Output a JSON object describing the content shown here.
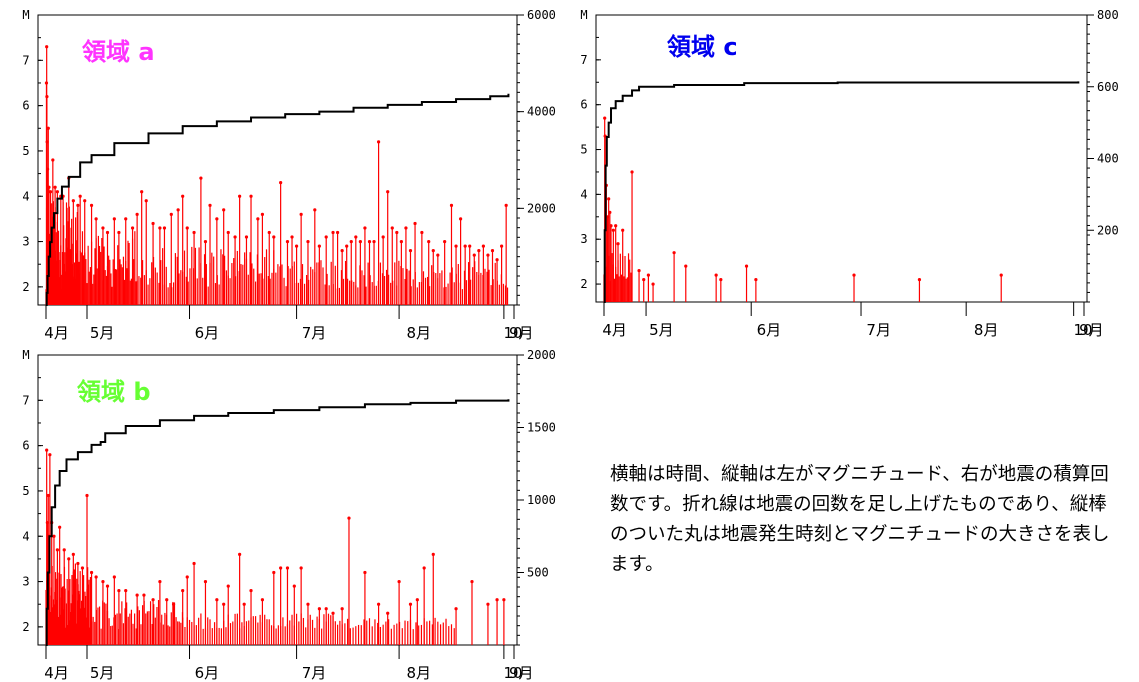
{
  "caption": "横軸は時間、縦軸は左がマグニチュード、右が地震の積算回数です。折れ線は地震の回数を足し上げたものであり、縦棒のついた丸は地震発生時刻とマグニチュードの大きさを表します。",
  "colors": {
    "stems": "#ff0000",
    "cumulative": "#000000",
    "region_a": "#ff33ff",
    "region_b": "#66ff33",
    "region_c": "#0000ee"
  },
  "chart_data": [
    {
      "type": "bar",
      "title": "領域 a",
      "left_axis_label": "M",
      "ylim_left": [
        1.6,
        8.0
      ],
      "ylim_right": [
        0,
        6000
      ],
      "left_ticks": [
        "2",
        "3",
        "4",
        "5",
        "6",
        "7"
      ],
      "right_ticks": [
        "2000",
        "4000",
        "6000"
      ],
      "x_tick_labels": [
        "4月",
        "5月",
        "6月",
        "7月",
        "8月",
        "9月",
        "10"
      ],
      "stems": [
        [
          0.2,
          6.5
        ],
        [
          0.3,
          7.3
        ],
        [
          0.4,
          6.2
        ],
        [
          0.5,
          5.2
        ],
        [
          0.7,
          4.6
        ],
        [
          1.0,
          5.5
        ],
        [
          1.3,
          4.2
        ],
        [
          2.0,
          4.1
        ],
        [
          3.0,
          4.8
        ],
        [
          4.0,
          4.2
        ],
        [
          5.0,
          4.1
        ],
        [
          6.5,
          4.0
        ],
        [
          7.5,
          4.0
        ],
        [
          10.0,
          4.4
        ],
        [
          12.0,
          3.9
        ],
        [
          14.0,
          3.8
        ],
        [
          15.0,
          4.0
        ],
        [
          17.0,
          3.9
        ],
        [
          20.0,
          3.8
        ],
        [
          22.0,
          3.5
        ],
        [
          25.0,
          3.3
        ],
        [
          27.0,
          3.2
        ],
        [
          30.0,
          3.5
        ],
        [
          32.0,
          3.2
        ],
        [
          35.0,
          3.5
        ],
        [
          38.0,
          3.3
        ],
        [
          40.0,
          3.6
        ],
        [
          42.0,
          4.1
        ],
        [
          44.0,
          3.9
        ],
        [
          47.0,
          3.4
        ],
        [
          50.0,
          3.3
        ],
        [
          52.0,
          3.3
        ],
        [
          55.0,
          3.6
        ],
        [
          58.0,
          3.7
        ],
        [
          60.0,
          4.0
        ],
        [
          62.0,
          3.3
        ],
        [
          65.0,
          3.2
        ],
        [
          68.0,
          4.4
        ],
        [
          70.0,
          3.0
        ],
        [
          72.0,
          3.8
        ],
        [
          75.0,
          3.5
        ],
        [
          78.0,
          3.7
        ],
        [
          80.0,
          3.2
        ],
        [
          83.0,
          3.1
        ],
        [
          85.0,
          4.0
        ],
        [
          88.0,
          3.1
        ],
        [
          90.0,
          4.0
        ],
        [
          93.0,
          3.5
        ],
        [
          95.0,
          3.6
        ],
        [
          98.0,
          3.2
        ],
        [
          100.0,
          3.1
        ],
        [
          103.0,
          4.3
        ],
        [
          106.0,
          3.0
        ],
        [
          108.0,
          3.1
        ],
        [
          110.0,
          2.9
        ],
        [
          112.0,
          3.6
        ],
        [
          115.0,
          3.0
        ],
        [
          118.0,
          3.7
        ],
        [
          120.0,
          2.9
        ],
        [
          123.0,
          3.1
        ],
        [
          126.0,
          3.2
        ],
        [
          128.0,
          3.2
        ],
        [
          130.0,
          2.8
        ],
        [
          132.0,
          2.9
        ],
        [
          134.0,
          3.0
        ],
        [
          136.0,
          3.1
        ],
        [
          138.0,
          3.0
        ],
        [
          140.0,
          3.3
        ],
        [
          142.0,
          3.0
        ],
        [
          144.0,
          3.0
        ],
        [
          146.0,
          5.2
        ],
        [
          148.0,
          3.1
        ],
        [
          150.0,
          4.1
        ],
        [
          152.0,
          3.3
        ],
        [
          154.0,
          3.2
        ],
        [
          156.0,
          3.0
        ],
        [
          158.0,
          3.3
        ],
        [
          160.0,
          2.8
        ],
        [
          162.0,
          3.4
        ],
        [
          165.0,
          3.2
        ],
        [
          168.0,
          3.0
        ],
        [
          170.0,
          2.8
        ],
        [
          172.0,
          2.7
        ],
        [
          175.0,
          3.0
        ],
        [
          178.0,
          3.8
        ],
        [
          180.0,
          2.9
        ],
        [
          182.0,
          3.5
        ],
        [
          184.0,
          2.9
        ],
        [
          186.0,
          2.9
        ],
        [
          188.0,
          2.7
        ],
        [
          190.0,
          2.8
        ],
        [
          192.0,
          2.9
        ],
        [
          194.0,
          2.7
        ],
        [
          196.0,
          2.8
        ],
        [
          198.0,
          2.6
        ],
        [
          200.0,
          2.9
        ],
        [
          202.0,
          3.8
        ]
      ],
      "bulk_stems": [
        {
          "from": 0.0,
          "to": 15.0,
          "step": 0.25,
          "max": 3.9
        },
        {
          "from": 15.0,
          "to": 40.0,
          "step": 0.5,
          "max": 3.3
        },
        {
          "from": 40.0,
          "to": 100.0,
          "step": 0.8,
          "max": 2.9
        },
        {
          "from": 100.0,
          "to": 203.0,
          "step": 0.9,
          "max": 2.6
        }
      ],
      "cumulative": [
        [
          0,
          0
        ],
        [
          0.3,
          250
        ],
        [
          0.7,
          600
        ],
        [
          1.2,
          1000
        ],
        [
          1.8,
          1300
        ],
        [
          2.5,
          1600
        ],
        [
          3.5,
          1900
        ],
        [
          5.0,
          2200
        ],
        [
          7.0,
          2450
        ],
        [
          10.0,
          2650
        ],
        [
          15.0,
          2950
        ],
        [
          20.0,
          3100
        ],
        [
          30.0,
          3350
        ],
        [
          45.0,
          3550
        ],
        [
          60.0,
          3700
        ],
        [
          75.0,
          3800
        ],
        [
          90.0,
          3880
        ],
        [
          105.0,
          3950
        ],
        [
          120.0,
          4000
        ],
        [
          135.0,
          4080
        ],
        [
          150.0,
          4140
        ],
        [
          165.0,
          4200
        ],
        [
          180.0,
          4260
        ],
        [
          195.0,
          4320
        ],
        [
          203.0,
          4370
        ]
      ]
    },
    {
      "type": "bar",
      "title": "領域 c",
      "left_axis_label": "M",
      "ylim_left": [
        1.6,
        8.0
      ],
      "ylim_right": [
        0,
        800
      ],
      "left_ticks": [
        "2",
        "3",
        "4",
        "5",
        "6",
        "7"
      ],
      "right_ticks": [
        "200",
        "400",
        "600",
        "800"
      ],
      "x_tick_labels": [
        "4月",
        "5月",
        "6月",
        "7月",
        "8月",
        "9月",
        "10"
      ],
      "stems": [
        [
          0.3,
          5.7
        ],
        [
          0.5,
          5.3
        ],
        [
          1.0,
          4.2
        ],
        [
          1.5,
          3.5
        ],
        [
          2.0,
          3.9
        ],
        [
          2.5,
          3.6
        ],
        [
          3.0,
          3.3
        ],
        [
          4.0,
          3.2
        ],
        [
          5.0,
          3.3
        ],
        [
          6.0,
          2.9
        ],
        [
          8.0,
          3.2
        ],
        [
          12.0,
          4.5
        ],
        [
          15.0,
          2.3
        ],
        [
          17.0,
          2.1
        ],
        [
          19.0,
          2.2
        ],
        [
          21.0,
          2.0
        ],
        [
          30.0,
          2.7
        ],
        [
          35.0,
          2.4
        ],
        [
          48.0,
          2.2
        ],
        [
          50.0,
          2.1
        ],
        [
          61.0,
          2.4
        ],
        [
          65.0,
          2.1
        ],
        [
          107.0,
          2.2
        ],
        [
          135.0,
          2.1
        ],
        [
          170.0,
          2.2
        ]
      ],
      "bulk_stems": [
        {
          "from": 0.0,
          "to": 12.0,
          "step": 0.5,
          "max": 2.9
        }
      ],
      "cumulative": [
        [
          0,
          0
        ],
        [
          0.3,
          200
        ],
        [
          0.7,
          380
        ],
        [
          1.2,
          460
        ],
        [
          2.0,
          500
        ],
        [
          3.0,
          540
        ],
        [
          5.0,
          560
        ],
        [
          8.0,
          575
        ],
        [
          12.0,
          590
        ],
        [
          15.0,
          600
        ],
        [
          30.0,
          605
        ],
        [
          60.0,
          610
        ],
        [
          100.0,
          612
        ],
        [
          203.0,
          615
        ]
      ]
    },
    {
      "type": "bar",
      "title": "領域 b",
      "left_axis_label": "M",
      "ylim_left": [
        1.6,
        8.0
      ],
      "ylim_right": [
        0,
        2000
      ],
      "left_ticks": [
        "2",
        "3",
        "4",
        "5",
        "6",
        "7"
      ],
      "right_ticks": [
        "500",
        "1000",
        "1500",
        "2000"
      ],
      "x_tick_labels": [
        "4月",
        "5月",
        "6月",
        "7月",
        "8月",
        "9月",
        "10"
      ],
      "stems": [
        [
          0.3,
          5.9
        ],
        [
          0.6,
          4.3
        ],
        [
          1.0,
          4.9
        ],
        [
          1.3,
          4.0
        ],
        [
          1.7,
          5.8
        ],
        [
          2.5,
          4.3
        ],
        [
          3.5,
          4.0
        ],
        [
          5.0,
          3.7
        ],
        [
          6.0,
          4.2
        ],
        [
          8.0,
          3.7
        ],
        [
          10.0,
          3.5
        ],
        [
          12.0,
          3.6
        ],
        [
          14.0,
          3.4
        ],
        [
          16.0,
          3.3
        ],
        [
          18.0,
          4.9
        ],
        [
          20.0,
          3.2
        ],
        [
          22.0,
          3.1
        ],
        [
          25.0,
          3.0
        ],
        [
          27.0,
          2.9
        ],
        [
          30.0,
          3.1
        ],
        [
          32.0,
          2.8
        ],
        [
          35.0,
          2.8
        ],
        [
          40.0,
          2.7
        ],
        [
          43.0,
          2.7
        ],
        [
          47.0,
          2.6
        ],
        [
          50.0,
          3.0
        ],
        [
          53.0,
          2.6
        ],
        [
          56.0,
          2.5
        ],
        [
          60.0,
          2.8
        ],
        [
          62.0,
          3.1
        ],
        [
          65.0,
          3.4
        ],
        [
          70.0,
          3.0
        ],
        [
          75.0,
          2.6
        ],
        [
          78.0,
          2.5
        ],
        [
          80.0,
          2.9
        ],
        [
          85.0,
          3.6
        ],
        [
          87.0,
          2.5
        ],
        [
          90.0,
          2.8
        ],
        [
          95.0,
          2.6
        ],
        [
          100.0,
          3.2
        ],
        [
          103.0,
          3.3
        ],
        [
          106.0,
          3.3
        ],
        [
          109.0,
          2.9
        ],
        [
          112.0,
          3.3
        ],
        [
          115.0,
          2.5
        ],
        [
          120.0,
          2.4
        ],
        [
          123.0,
          2.4
        ],
        [
          126.0,
          2.3
        ],
        [
          130.0,
          2.4
        ],
        [
          133.0,
          4.4
        ],
        [
          140.0,
          3.2
        ],
        [
          146.0,
          2.5
        ],
        [
          150.0,
          2.3
        ],
        [
          155.0,
          3.0
        ],
        [
          160.0,
          2.5
        ],
        [
          163.0,
          2.6
        ],
        [
          166.0,
          3.3
        ],
        [
          170.0,
          3.6
        ],
        [
          180.0,
          2.4
        ],
        [
          187.0,
          3.0
        ],
        [
          194.0,
          2.5
        ],
        [
          198.0,
          2.6
        ],
        [
          201.0,
          2.6
        ]
      ],
      "bulk_stems": [
        {
          "from": 0.0,
          "to": 20.0,
          "step": 0.3,
          "max": 3.4
        },
        {
          "from": 20.0,
          "to": 60.0,
          "step": 0.7,
          "max": 2.6
        },
        {
          "from": 60.0,
          "to": 130.0,
          "step": 1.0,
          "max": 2.3
        },
        {
          "from": 130.0,
          "to": 180.0,
          "step": 1.2,
          "max": 2.2
        }
      ],
      "cumulative": [
        [
          0,
          0
        ],
        [
          0.3,
          250
        ],
        [
          0.8,
          500
        ],
        [
          1.5,
          750
        ],
        [
          2.5,
          950
        ],
        [
          4.0,
          1100
        ],
        [
          6.0,
          1200
        ],
        [
          9.0,
          1280
        ],
        [
          14.0,
          1330
        ],
        [
          20.0,
          1380
        ],
        [
          24.0,
          1400
        ],
        [
          26.0,
          1460
        ],
        [
          35.0,
          1510
        ],
        [
          50.0,
          1550
        ],
        [
          65.0,
          1580
        ],
        [
          80.0,
          1600
        ],
        [
          100.0,
          1620
        ],
        [
          120.0,
          1640
        ],
        [
          140.0,
          1660
        ],
        [
          160.0,
          1670
        ],
        [
          180.0,
          1685
        ],
        [
          203.0,
          1695
        ]
      ]
    }
  ]
}
